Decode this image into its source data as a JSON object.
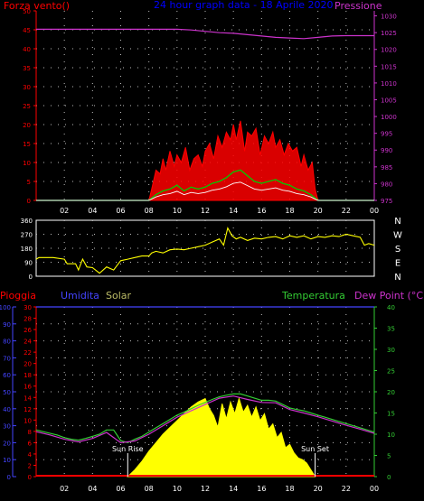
{
  "colors": {
    "background": "#000000",
    "wind": "#ff0000",
    "gust_white": "#ffffff",
    "wind_green": "#00cc00",
    "pressure": "#cc33cc",
    "direction": "#ffff00",
    "rain": "#ff0000",
    "humidity": "#4444ff",
    "solar": "#ffff00",
    "temperature": "#33cc33",
    "dewpoint": "#cc33cc",
    "frame": "#ffffff",
    "grid": "#bbbbbb",
    "title": "#0000ff"
  },
  "chart_data": [
    {
      "id": "wind_pressure",
      "type": "line",
      "title": "24 hour graph data - 18 Aprile 2020",
      "left_label": "Forza vento()",
      "right_label": "Pressione",
      "x_ticks": [
        "02",
        "04",
        "06",
        "08",
        "10",
        "12",
        "14",
        "16",
        "18",
        "20",
        "22",
        "00"
      ],
      "y_left_ticks": [
        "0",
        "5",
        "10",
        "15",
        "20",
        "25",
        "30",
        "35",
        "40",
        "45",
        "50"
      ],
      "y_right_ticks": [
        "975",
        "980",
        "985",
        "990",
        "995",
        "1000",
        "1005",
        "1010",
        "1015",
        "1020",
        "1025",
        "1030"
      ],
      "ylim_left": [
        0,
        50
      ],
      "ylim_right": [
        975,
        1031.5
      ],
      "xlim": [
        0,
        24
      ],
      "grid": true,
      "series": [
        {
          "role": "pressure",
          "x": [
            0,
            2,
            4,
            6,
            8,
            9,
            10,
            11,
            12,
            13,
            14,
            15,
            16,
            17,
            18,
            19,
            20,
            21,
            22,
            23,
            24
          ],
          "values": [
            1026,
            1026,
            1026,
            1026,
            1026,
            1026,
            1026,
            1025.8,
            1025.4,
            1025,
            1024.8,
            1024.4,
            1024,
            1023.6,
            1023.4,
            1023.2,
            1023.6,
            1024,
            1024.1,
            1024.1,
            1024.1
          ]
        },
        {
          "role": "wind_gust",
          "x": [
            0,
            8.0,
            8.2,
            8.5,
            8.8,
            9.0,
            9.2,
            9.5,
            9.8,
            10.0,
            10.3,
            10.6,
            10.9,
            11.2,
            11.5,
            11.8,
            12.0,
            12.3,
            12.6,
            12.9,
            13.2,
            13.5,
            13.8,
            14.0,
            14.2,
            14.5,
            14.8,
            15.0,
            15.3,
            15.6,
            15.9,
            16.2,
            16.5,
            16.8,
            17.0,
            17.3,
            17.6,
            17.9,
            18.2,
            18.5,
            18.8,
            19.0,
            19.3,
            19.6,
            19.8,
            20.0,
            24
          ],
          "values": [
            0,
            0,
            3,
            8,
            7,
            11,
            8,
            13,
            9,
            12,
            10,
            14,
            8,
            11,
            12,
            9,
            13,
            15,
            11,
            17,
            14,
            18,
            16,
            20,
            16,
            21,
            13,
            18,
            17,
            19,
            12,
            17,
            15,
            18,
            14,
            16,
            12,
            15,
            13,
            14,
            9,
            12,
            8,
            10,
            3,
            0,
            0
          ]
        },
        {
          "role": "wind_average",
          "x": [
            0,
            8.0,
            8.5,
            9.0,
            9.5,
            10.0,
            10.5,
            11.0,
            11.5,
            12.0,
            12.5,
            13.0,
            13.5,
            14.0,
            14.5,
            15.0,
            15.5,
            16.0,
            16.5,
            17.0,
            17.5,
            18.0,
            18.5,
            19.0,
            19.5,
            20.0,
            24
          ],
          "values": [
            0,
            0,
            1.5,
            2.5,
            3,
            4,
            2.5,
            3.5,
            3,
            3.5,
            4.5,
            5,
            6,
            7.5,
            8,
            6.5,
            5,
            4.5,
            5,
            5.5,
            4.5,
            4,
            3,
            2.5,
            1.5,
            0,
            0
          ]
        }
      ]
    },
    {
      "id": "direction",
      "type": "line",
      "right_labels": [
        "N",
        "W",
        "S",
        "E",
        "N"
      ],
      "y_ticks": [
        "0",
        "90",
        "180",
        "270",
        "360"
      ],
      "ylim": [
        0,
        360
      ],
      "xlim": [
        0,
        24
      ],
      "grid": true,
      "series": [
        {
          "role": "direction",
          "x": [
            0,
            0.2,
            1.2,
            2.0,
            2.2,
            2.8,
            3.0,
            3.3,
            3.6,
            4.0,
            4.5,
            5.0,
            5.5,
            6.0,
            6.5,
            7.0,
            7.5,
            8.0,
            8.2,
            8.5,
            9.0,
            9.5,
            10.0,
            10.5,
            11.0,
            11.5,
            12.0,
            12.5,
            13.0,
            13.3,
            13.6,
            13.9,
            14.2,
            14.5,
            15.0,
            15.5,
            16.0,
            16.5,
            17.0,
            17.5,
            18.0,
            18.5,
            19.0,
            19.5,
            20.0,
            20.5,
            21.0,
            21.5,
            22.0,
            22.5,
            23.0,
            23.3,
            23.6,
            24
          ],
          "values": [
            110,
            120,
            120,
            110,
            80,
            80,
            40,
            110,
            60,
            55,
            20,
            60,
            40,
            100,
            110,
            120,
            130,
            130,
            150,
            160,
            150,
            170,
            175,
            170,
            180,
            190,
            200,
            220,
            240,
            200,
            310,
            260,
            240,
            250,
            230,
            245,
            240,
            250,
            255,
            240,
            260,
            250,
            260,
            240,
            255,
            250,
            260,
            255,
            270,
            260,
            250,
            200,
            210,
            200
          ]
        }
      ]
    },
    {
      "id": "temperature_solar",
      "type": "area",
      "labels": {
        "rain": "Pioggia",
        "humidity": "Umidita",
        "solar": "Solar",
        "temperature": "Temperatura",
        "dewpoint": "Dew Point (°C)",
        "sunrise": "Sun Rise",
        "sunset": "Sun Set"
      },
      "x_ticks": [
        "02",
        "04",
        "06",
        "08",
        "10",
        "12",
        "14",
        "16",
        "18",
        "20",
        "22",
        "00"
      ],
      "y_humidity_ticks": [
        "0",
        "10",
        "20",
        "30",
        "40",
        "50",
        "60",
        "70",
        "80",
        "90",
        "100"
      ],
      "y_rain_ticks": [
        "0",
        "2",
        "4",
        "6",
        "8",
        "10",
        "12",
        "14",
        "16",
        "18",
        "20",
        "22",
        "24",
        "26",
        "28",
        "30"
      ],
      "y_temp_ticks": [
        "0",
        "5",
        "10",
        "15",
        "20",
        "25",
        "30",
        "35",
        "40"
      ],
      "ylim_humidity": [
        0,
        100
      ],
      "ylim_rain": [
        0,
        30
      ],
      "ylim_temp": [
        0,
        40
      ],
      "xlim": [
        0,
        24
      ],
      "sunrise_hour": 6.5,
      "sunset_hour": 19.8,
      "grid": true,
      "series": [
        {
          "role": "temperature",
          "x": [
            0,
            0.5,
            1,
            1.5,
            2,
            2.5,
            3,
            3.5,
            4,
            4.5,
            5,
            5.5,
            6,
            6.5,
            7,
            7.5,
            8,
            8.5,
            9,
            9.5,
            10,
            10.5,
            11,
            11.5,
            12,
            12.5,
            13,
            13.5,
            14,
            14.5,
            15,
            15.5,
            16,
            16.5,
            17,
            17.5,
            18,
            18.5,
            19,
            19.5,
            20,
            20.5,
            21,
            21.5,
            22,
            22.5,
            23,
            23.5,
            24
          ],
          "values": [
            11,
            10.6,
            10.2,
            9.8,
            9.2,
            8.8,
            8.6,
            9,
            9.5,
            10,
            11,
            11,
            8.5,
            8,
            8.8,
            9.5,
            10.5,
            11.5,
            12.5,
            13.5,
            14.5,
            15.2,
            16,
            16.8,
            17.5,
            18.2,
            18.8,
            19.2,
            19.5,
            19.5,
            19,
            18.5,
            18,
            18,
            17.8,
            17,
            16.2,
            15.8,
            15.5,
            15,
            14.5,
            14,
            13.5,
            13,
            12.5,
            12,
            11.5,
            11,
            10.5
          ]
        },
        {
          "role": "dewpoint",
          "x": [
            0,
            1,
            2,
            3,
            4,
            5,
            6,
            7,
            8,
            9,
            10,
            11,
            12,
            13,
            14,
            15,
            16,
            17,
            18,
            19,
            20,
            21,
            22,
            23,
            24
          ],
          "values": [
            10.6,
            9.8,
            8.8,
            8.2,
            9,
            10.4,
            8,
            8.4,
            10,
            12,
            14,
            15.5,
            17,
            18.5,
            19,
            18.2,
            17.5,
            17.4,
            15.8,
            15,
            14.1,
            13.1,
            12.1,
            11.2,
            10.2
          ]
        },
        {
          "role": "solar",
          "x": [
            6.5,
            7,
            7.5,
            8,
            8.5,
            9,
            9.5,
            10,
            10.5,
            11,
            11.5,
            12,
            12.3,
            12.6,
            12.9,
            13.2,
            13.5,
            13.8,
            14.1,
            14.4,
            14.7,
            15.0,
            15.3,
            15.6,
            15.9,
            16.2,
            16.5,
            16.8,
            17.1,
            17.4,
            17.7,
            18.0,
            18.3,
            18.6,
            18.9,
            19.2,
            19.5,
            19.8
          ],
          "values": [
            0,
            4,
            9,
            15,
            20,
            25,
            29,
            33,
            37,
            41,
            44,
            46,
            40,
            36,
            29,
            43,
            34,
            44,
            37,
            46,
            38,
            42,
            35,
            41,
            33,
            37,
            28,
            31,
            23,
            26,
            17,
            19,
            14,
            11,
            10,
            8,
            4,
            0
          ]
        },
        {
          "role": "humidity",
          "x": [
            0,
            24
          ],
          "values": [
            100,
            100
          ]
        }
      ]
    }
  ]
}
